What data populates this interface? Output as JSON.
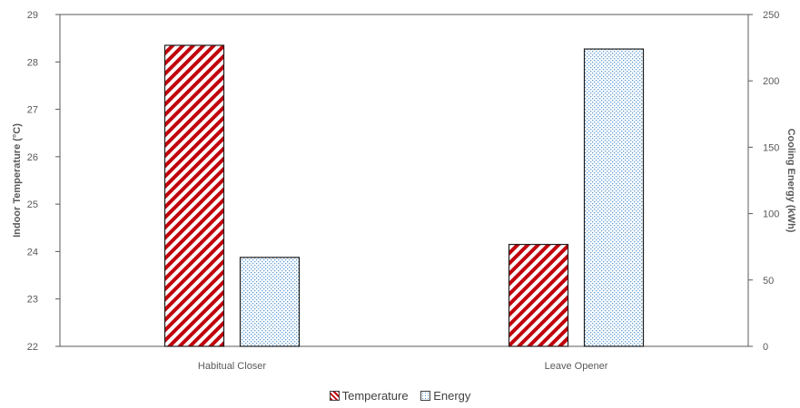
{
  "chart_data": {
    "type": "bar",
    "categories": [
      "Habitual Closer",
      "Leave Opener"
    ],
    "series": [
      {
        "name": "Temperature",
        "axis": "left",
        "values": [
          28.35,
          24.15
        ],
        "color": "#c0000b",
        "pattern": "diagonal-hatch"
      },
      {
        "name": "Energy",
        "axis": "right",
        "values": [
          67,
          224
        ],
        "color": "#5b9bd5",
        "pattern": "dotted"
      }
    ],
    "ylabel": "Indoor Temperature (°C)",
    "ylabel_right": "Cooling Energy (kWh)",
    "ylim": [
      22,
      29
    ],
    "ylim_right": [
      0,
      250
    ],
    "yticks": [
      "22",
      "23",
      "24",
      "25",
      "26",
      "27",
      "28",
      "29"
    ],
    "yticks_right": [
      "0",
      "50",
      "100",
      "150",
      "200",
      "250"
    ],
    "legend_position": "bottom",
    "grid": false
  }
}
